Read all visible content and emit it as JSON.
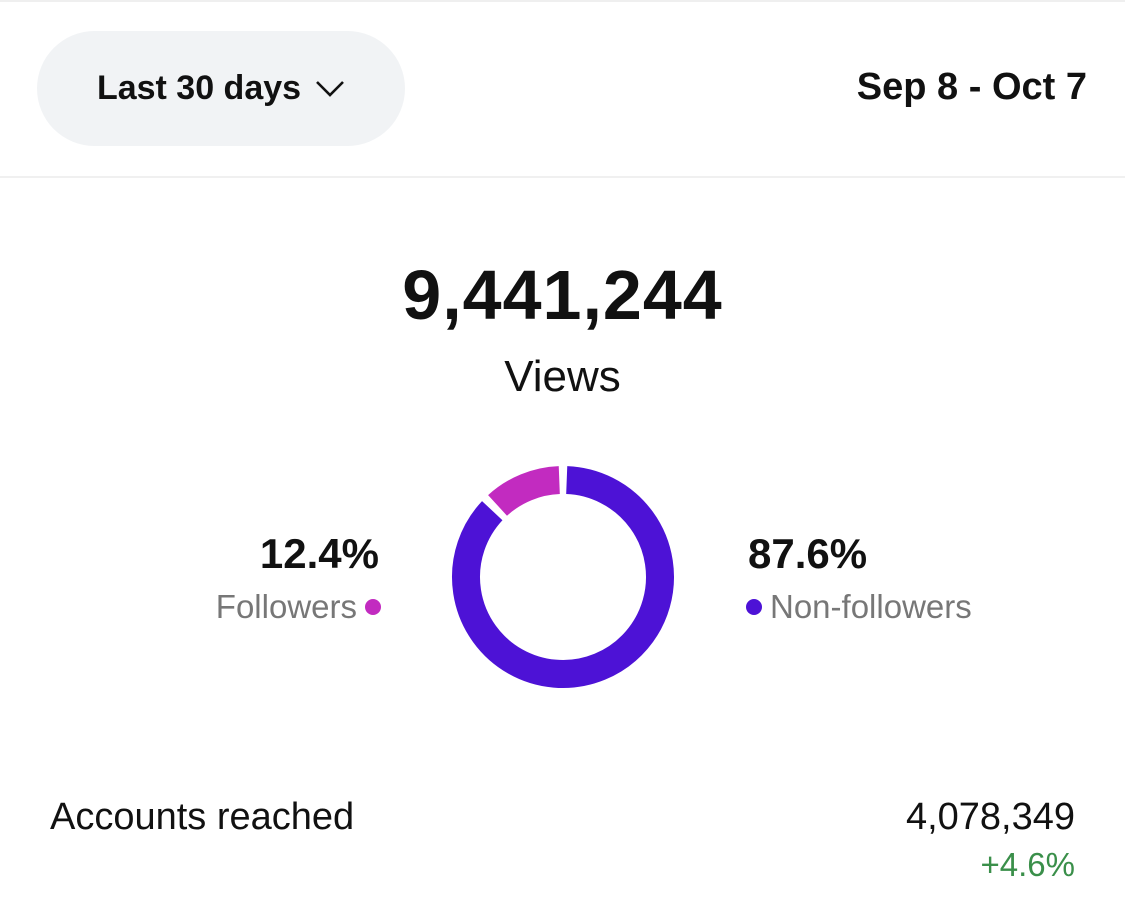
{
  "header": {
    "range_label": "Last 30 days",
    "range_icon": "chevron-down-icon",
    "date_range": "Sep 8 - Oct 7"
  },
  "summary": {
    "total": "9,441,244",
    "label": "Views"
  },
  "breakdown": {
    "followers": {
      "percent": "12.4%",
      "label": "Followers",
      "value": 12.4,
      "color": "#c22bc0"
    },
    "non_followers": {
      "percent": "87.6%",
      "label": "Non-followers",
      "value": 87.6,
      "color": "#4d12d6"
    }
  },
  "metrics": [
    {
      "label": "Accounts reached",
      "value": "4,078,349",
      "change": "+4.6%",
      "change_color": "#3a8f4a"
    }
  ]
}
